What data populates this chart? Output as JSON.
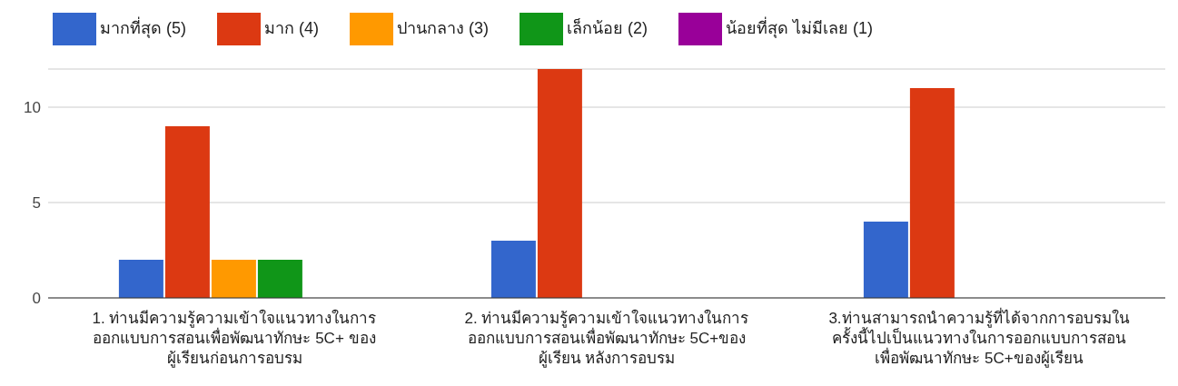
{
  "chart_data": {
    "type": "bar",
    "categories": [
      "1. ท่านมีความรู้ความเข้าใจแนวทางในการ\nออกแบบการสอนเพื่อพัฒนาทักษะ 5C+ ของ\nผู้เรียนก่อนการอบรม",
      "2. ท่านมีความรู้ความเข้าใจแนวทางในการ\nออกแบบการสอนเพื่อพัฒนาทักษะ 5C+ของ\nผู้เรียน หลังการอบรม",
      "3.ท่านสามารถนำความรู้ที่ได้จากการอบรมใน\nครั้งนี้ไปเป็นแนวทางในการออกแบบการสอน\nเพื่อพัฒนาทักษะ 5C+ของผู้เรียน"
    ],
    "series": [
      {
        "name": "มากที่สุด (5)",
        "color": "#3366cc",
        "values": [
          2,
          3,
          4
        ]
      },
      {
        "name": "มาก (4)",
        "color": "#dc3912",
        "values": [
          9,
          12,
          11
        ]
      },
      {
        "name": "ปานกลาง (3)",
        "color": "#ff9900",
        "values": [
          2,
          0,
          0
        ]
      },
      {
        "name": "เล็กน้อย (2)",
        "color": "#109618",
        "values": [
          2,
          0,
          0
        ]
      },
      {
        "name": "น้อยที่สุด ไม่มีเลย (1)",
        "color": "#990099",
        "values": [
          0,
          0,
          0
        ]
      }
    ],
    "ylim": [
      0,
      12
    ],
    "yticks": [
      0,
      5,
      10
    ],
    "grid": "y",
    "legend": "top left"
  }
}
